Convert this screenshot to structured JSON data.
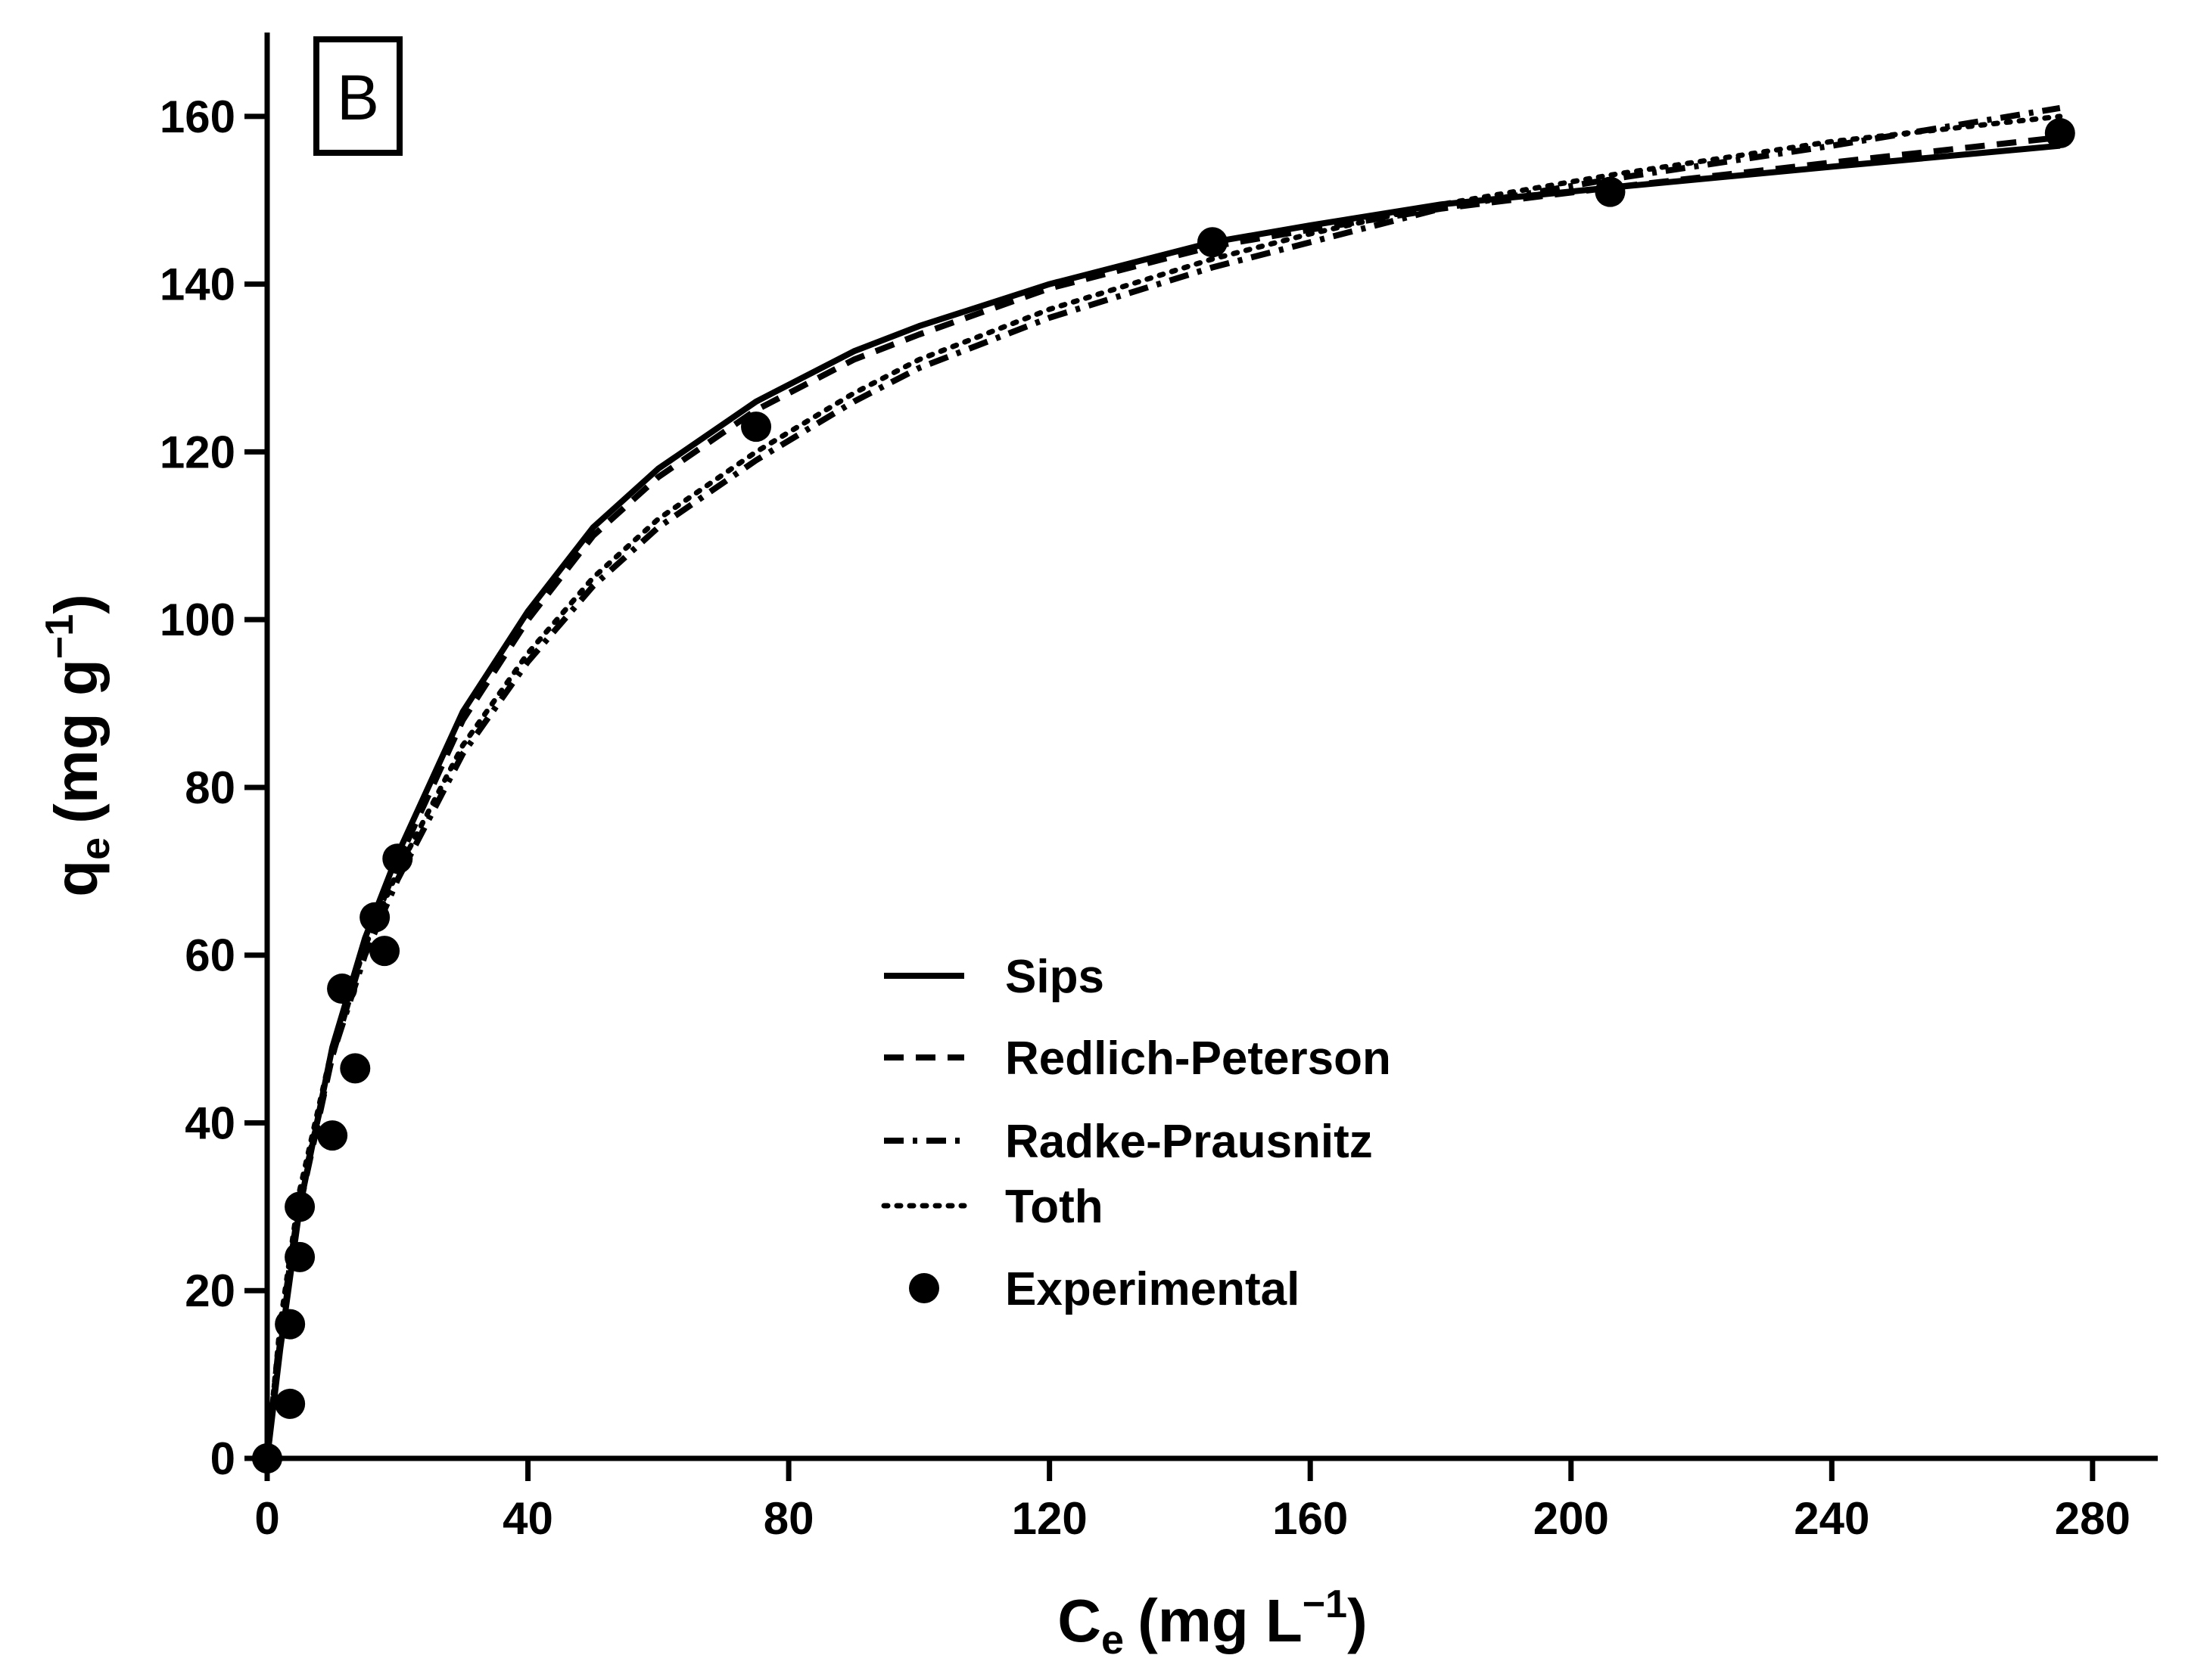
{
  "chart_data": {
    "type": "line",
    "panel_label": "B",
    "xaxis": {
      "label_main": "C",
      "label_sub": "e",
      "label_units_start": "(mg L",
      "label_sup": "−1",
      "label_units_end": ")",
      "range": [
        0,
        290
      ],
      "ticks": [
        0,
        40,
        80,
        120,
        160,
        200,
        240,
        280
      ],
      "tick_labels": [
        "0",
        "40",
        "80",
        "120",
        "160",
        "200",
        "240",
        "280"
      ]
    },
    "yaxis": {
      "label_main": "q",
      "label_sub": "e",
      "label_units_start": "(mg g",
      "label_sup": "−1",
      "label_units_end": ")",
      "range": [
        0,
        170
      ],
      "ticks": [
        0,
        20,
        40,
        60,
        80,
        100,
        120,
        140,
        160
      ],
      "tick_labels": [
        "0",
        "20",
        "40",
        "60",
        "80",
        "100",
        "120",
        "140",
        "160"
      ]
    },
    "grid": false,
    "legend_position": "center-right",
    "series": [
      {
        "name": "Sips",
        "style": "solid",
        "x": [
          0,
          2,
          5,
          10,
          15,
          20,
          30,
          40,
          50,
          60,
          75,
          90,
          100,
          120,
          145,
          160,
          180,
          206,
          240,
          275
        ],
        "y": [
          0,
          13,
          30,
          49,
          62,
          72,
          89,
          101,
          111,
          118,
          126,
          132,
          135,
          140,
          145,
          147,
          149.5,
          151.5,
          154,
          156.5
        ]
      },
      {
        "name": "Redlich-Peterson",
        "style": "dashed",
        "x": [
          0,
          2,
          5,
          10,
          15,
          20,
          30,
          40,
          50,
          60,
          75,
          90,
          100,
          120,
          145,
          160,
          180,
          206,
          240,
          275
        ],
        "y": [
          0,
          14,
          30,
          48,
          61,
          71,
          88,
          100,
          110,
          117,
          125,
          131,
          134,
          139.5,
          144.5,
          146.5,
          149,
          151.5,
          154.5,
          157.5
        ]
      },
      {
        "name": "Radke-Prausnitz",
        "style": "dashdot",
        "x": [
          0,
          2,
          5,
          10,
          15,
          20,
          30,
          40,
          50,
          60,
          75,
          90,
          100,
          120,
          145,
          160,
          180,
          206,
          240,
          275
        ],
        "y": [
          0,
          15,
          31,
          48,
          60,
          69,
          84,
          95,
          104,
          111,
          119,
          126,
          130,
          136,
          142,
          145,
          149,
          152.5,
          156.5,
          161
        ]
      },
      {
        "name": "Toth",
        "style": "dotted",
        "x": [
          0,
          2,
          5,
          10,
          15,
          20,
          30,
          40,
          50,
          60,
          75,
          90,
          100,
          120,
          145,
          160,
          180,
          206,
          240,
          275
        ],
        "y": [
          0,
          16,
          32,
          49,
          61,
          70,
          85,
          96,
          105,
          112,
          120,
          127,
          131,
          137,
          143,
          146,
          149.5,
          153,
          157,
          160
        ]
      },
      {
        "name": "Experimental",
        "style": "markers",
        "x": [
          0,
          3.5,
          3.5,
          5,
          5,
          10,
          11.5,
          13.5,
          16.5,
          18,
          20,
          75,
          145,
          206,
          275
        ],
        "y": [
          0,
          6.5,
          16,
          24,
          30,
          38.5,
          56,
          46.5,
          64.5,
          60.5,
          71.5,
          123,
          145,
          151,
          158
        ]
      }
    ]
  }
}
